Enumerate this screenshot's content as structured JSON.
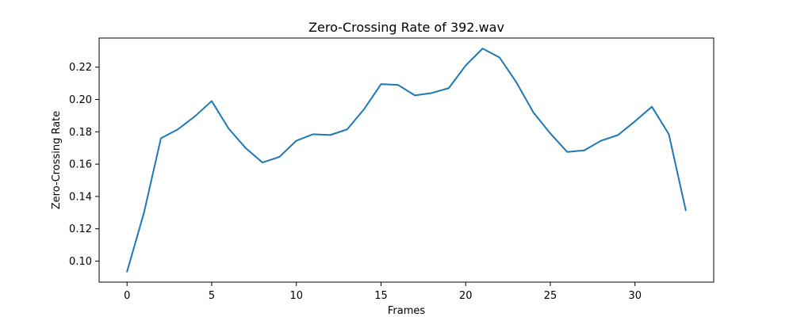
{
  "chart_data": {
    "type": "line",
    "title": "Zero-Crossing Rate of 392.wav",
    "xlabel": "Frames",
    "ylabel": "Zero-Crossing Rate",
    "xlim": [
      -1.65,
      34.65
    ],
    "ylim": [
      0.087,
      0.238
    ],
    "xticks": [
      0,
      5,
      10,
      15,
      20,
      25,
      30
    ],
    "yticks": [
      0.1,
      0.12,
      0.14,
      0.16,
      0.18,
      0.2,
      0.22
    ],
    "ytick_labels": [
      "0.10",
      "0.12",
      "0.14",
      "0.16",
      "0.18",
      "0.20",
      "0.22"
    ],
    "grid": false,
    "series": [
      {
        "color": "#1f77b4",
        "x": [
          0,
          1,
          2,
          3,
          4,
          5,
          6,
          7,
          8,
          9,
          10,
          11,
          12,
          13,
          14,
          15,
          16,
          17,
          18,
          19,
          20,
          21,
          22,
          23,
          24,
          25,
          26,
          27,
          28,
          29,
          30,
          31,
          32,
          33
        ],
        "values": [
          0.0935,
          0.13,
          0.176,
          0.1815,
          0.1895,
          0.199,
          0.182,
          0.17,
          0.161,
          0.1645,
          0.1745,
          0.1785,
          0.178,
          0.1815,
          0.194,
          0.2095,
          0.209,
          0.2025,
          0.204,
          0.207,
          0.221,
          0.2315,
          0.226,
          0.2105,
          0.192,
          0.179,
          0.1675,
          0.1685,
          0.1745,
          0.178,
          0.1865,
          0.1955,
          0.1785,
          0.1315
        ]
      }
    ]
  }
}
